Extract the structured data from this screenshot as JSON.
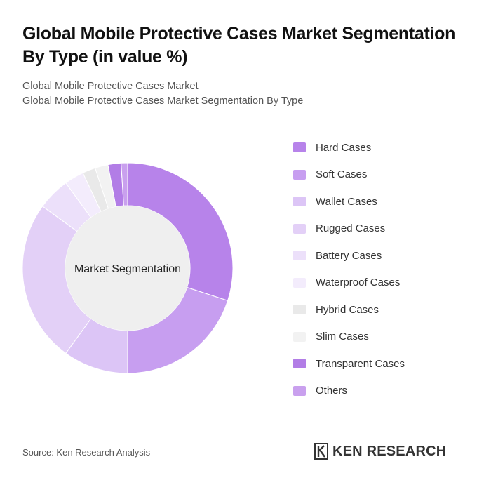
{
  "header": {
    "title": "Global Mobile Protective Cases Market Segmentation By Type (in value %)",
    "subtitle_line1": "Global Mobile Protective Cases Market",
    "subtitle_line2": "Global Mobile Protective Cases Market Segmentation By Type"
  },
  "chart_data": {
    "type": "pie",
    "center_label": "Market Segmentation",
    "categories": [
      "Hard Cases",
      "Soft Cases",
      "Wallet Cases",
      "Rugged Cases",
      "Battery Cases",
      "Waterproof Cases",
      "Hybrid Cases",
      "Slim Cases",
      "Transparent Cases",
      "Others"
    ],
    "values": [
      30,
      20,
      10,
      25,
      5,
      3,
      2,
      2,
      2,
      1
    ],
    "colors": [
      "#b783ea",
      "#c79ef0",
      "#dcc5f6",
      "#e3d0f7",
      "#ece0fa",
      "#f3ecfc",
      "#e9e9e9",
      "#f2f2f2",
      "#b27de6",
      "#c9a0ee"
    ],
    "legend_position": "right"
  },
  "footer": {
    "source": "Source: Ken Research Analysis",
    "logo_text": "KEN RESEARCH"
  }
}
